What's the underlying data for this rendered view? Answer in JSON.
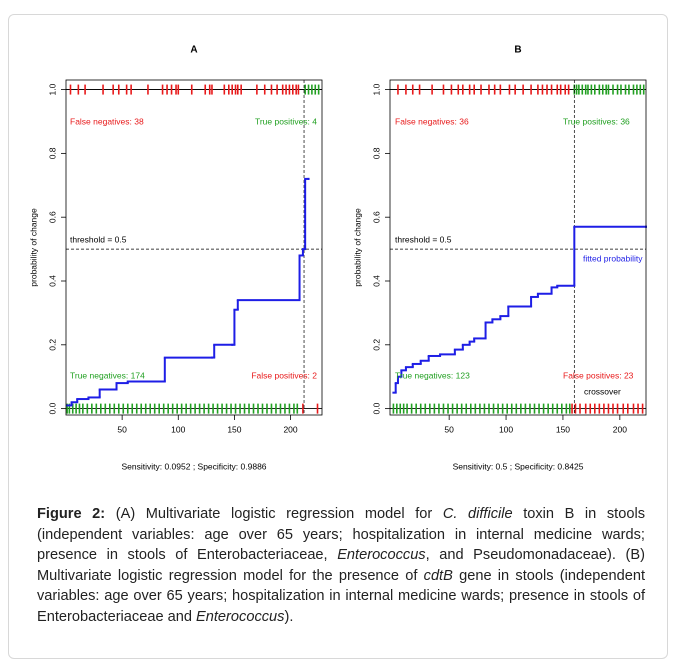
{
  "chart_data": [
    {
      "type": "step",
      "title": "A",
      "ylabel": "probability of change",
      "note": "Sensitivity: 0.0952 ; Specificity: 0.9886",
      "xlim": [
        0,
        228
      ],
      "ylim": [
        -0.02,
        1.03
      ],
      "xticks": [
        50,
        100,
        150,
        200
      ],
      "yticks": [
        {
          "value": 0,
          "label": "0.0"
        },
        0.2,
        0.4,
        0.6,
        {
          "value": 1,
          "label": "1.0"
        },
        0.8
      ],
      "color": "#1e1ee6",
      "x": [
        1,
        5,
        10,
        20,
        30,
        45,
        55,
        88,
        130,
        132,
        148,
        150,
        153,
        208,
        211,
        213,
        216
      ],
      "values": [
        0.01,
        0.02,
        0.03,
        0.035,
        0.06,
        0.08,
        0.085,
        0.16,
        0.16,
        0.2,
        0.2,
        0.31,
        0.34,
        0.48,
        0.5,
        0.72,
        0.72
      ],
      "threshold": 0.5,
      "cutoff_x": 212,
      "rugs": [
        {
          "y": 1,
          "color": "#e8191a",
          "x": [
            4,
            11,
            17,
            33,
            42,
            47,
            54,
            58,
            73,
            86,
            90,
            94,
            98,
            100,
            112,
            124,
            128,
            130,
            141,
            145,
            148,
            151,
            153,
            156,
            170,
            177,
            183,
            188,
            193,
            196,
            199,
            202,
            205,
            207
          ]
        },
        {
          "y": 1,
          "color": "#22a022",
          "x": [
            213,
            216,
            219,
            222,
            225
          ]
        },
        {
          "y": 0,
          "color": "#22a022",
          "x": [
            1,
            3,
            6,
            9,
            12,
            15,
            19,
            23,
            27,
            31,
            35,
            39,
            43,
            47,
            51,
            55,
            59,
            63,
            67,
            71,
            75,
            79,
            83,
            87,
            91,
            95,
            99,
            103,
            107,
            111,
            115,
            119,
            123,
            127,
            131,
            135,
            139,
            143,
            147,
            151,
            155,
            159,
            163,
            167,
            171,
            175,
            179,
            183,
            187,
            191,
            195,
            199,
            203,
            206
          ]
        },
        {
          "y": 0,
          "color": "#e8191a",
          "x": [
            211,
            224
          ]
        }
      ],
      "annotations": [
        {
          "text": "False negatives: 38",
          "color": "#e8191a"
        },
        {
          "text": "True positives: 4",
          "color": "#22a022"
        },
        {
          "text": "threshold = 0.5",
          "color": "#000000"
        },
        {
          "text": "True negatives: 174",
          "color": "#22a022"
        },
        {
          "text": "False positives: 2",
          "color": "#e8191a"
        }
      ]
    },
    {
      "type": "step",
      "title": "B",
      "ylabel": "probability of change",
      "note": "Sensitivity: 0.5 ; Specificity: 0.8425",
      "xlim": [
        -2,
        223
      ],
      "ylim": [
        -0.02,
        1.03
      ],
      "xticks": [
        50,
        100,
        150,
        200
      ],
      "yticks": [
        {
          "value": 0,
          "label": "0.0"
        },
        0.2,
        0.4,
        0.6,
        0.8,
        {
          "value": 1,
          "label": "1.0"
        }
      ],
      "color": "#1e1ee6",
      "x": [
        1,
        3,
        5,
        8,
        12,
        18,
        25,
        32,
        42,
        55,
        62,
        68,
        72,
        82,
        88,
        95,
        102,
        122,
        128,
        140,
        145,
        160,
        223
      ],
      "values": [
        0.05,
        0.08,
        0.1,
        0.12,
        0.13,
        0.14,
        0.15,
        0.165,
        0.17,
        0.185,
        0.2,
        0.21,
        0.22,
        0.27,
        0.28,
        0.29,
        0.32,
        0.35,
        0.36,
        0.38,
        0.385,
        0.57,
        0.57
      ],
      "threshold": 0.5,
      "cutoff_x": 160,
      "rugs": [
        {
          "y": 1,
          "color": "#e8191a",
          "x": [
            5,
            12,
            18,
            24,
            35,
            45,
            52,
            58,
            62,
            68,
            72,
            78,
            85,
            90,
            95,
            103,
            108,
            115,
            122,
            128,
            132,
            136,
            140,
            145,
            148,
            152,
            155
          ]
        },
        {
          "y": 1,
          "color": "#22a022",
          "x": [
            160,
            162,
            164,
            167,
            170,
            172,
            175,
            178,
            182,
            185,
            188,
            190,
            194,
            198,
            201,
            205,
            208,
            212,
            215,
            218,
            221
          ]
        },
        {
          "y": 0,
          "color": "#22a022",
          "x": [
            1,
            4,
            7,
            10,
            13,
            17,
            21,
            25,
            29,
            33,
            37,
            41,
            45,
            49,
            53,
            57,
            61,
            65,
            69,
            73,
            77,
            81,
            85,
            89,
            93,
            97,
            101,
            105,
            109,
            113,
            117,
            121,
            125,
            129,
            133,
            137,
            141,
            145,
            149,
            153,
            156
          ]
        },
        {
          "y": 0,
          "color": "#e8191a",
          "x": [
            158,
            161,
            165,
            170,
            174,
            178,
            182,
            186,
            190,
            194,
            198,
            203,
            207,
            212,
            216,
            220
          ]
        }
      ],
      "annotations": [
        {
          "text": "False negatives: 36",
          "color": "#e8191a"
        },
        {
          "text": "True positives: 36",
          "color": "#22a022"
        },
        {
          "text": "threshold = 0.5",
          "color": "#000000"
        },
        {
          "text": "fitted probability",
          "color": "#1e1ee6"
        },
        {
          "text": "True negatives: 123",
          "color": "#22a022"
        },
        {
          "text": "False positives: 23",
          "color": "#e8191a"
        },
        {
          "text": "crossover",
          "color": "#000000"
        }
      ]
    }
  ],
  "caption": {
    "segments": [
      {
        "text": "Figure 2:",
        "style": "bold"
      },
      {
        "text": " (A) Multivariate logistic regression model for ",
        "style": "normal"
      },
      {
        "text": "C. difficile",
        "style": "italic"
      },
      {
        "text": " toxin B in stools (independent variables: age over 65 years; hospitalization in internal medicine wards; presence in stools of Enterobacteriaceae, ",
        "style": "normal"
      },
      {
        "text": "Enterococcus",
        "style": "italic"
      },
      {
        "text": ", and Pseudomonadaceae). (B) Multivariate logistic regression model for the presence of ",
        "style": "normal"
      },
      {
        "text": "cdtB",
        "style": "italic"
      },
      {
        "text": " gene in stools (independent variables: age over 65 years; hospitalization in internal medicine wards; presence in stools of Enterobacteriaceae and ",
        "style": "normal"
      },
      {
        "text": "Enterococcus",
        "style": "italic"
      },
      {
        "text": ").",
        "style": "normal"
      }
    ]
  }
}
